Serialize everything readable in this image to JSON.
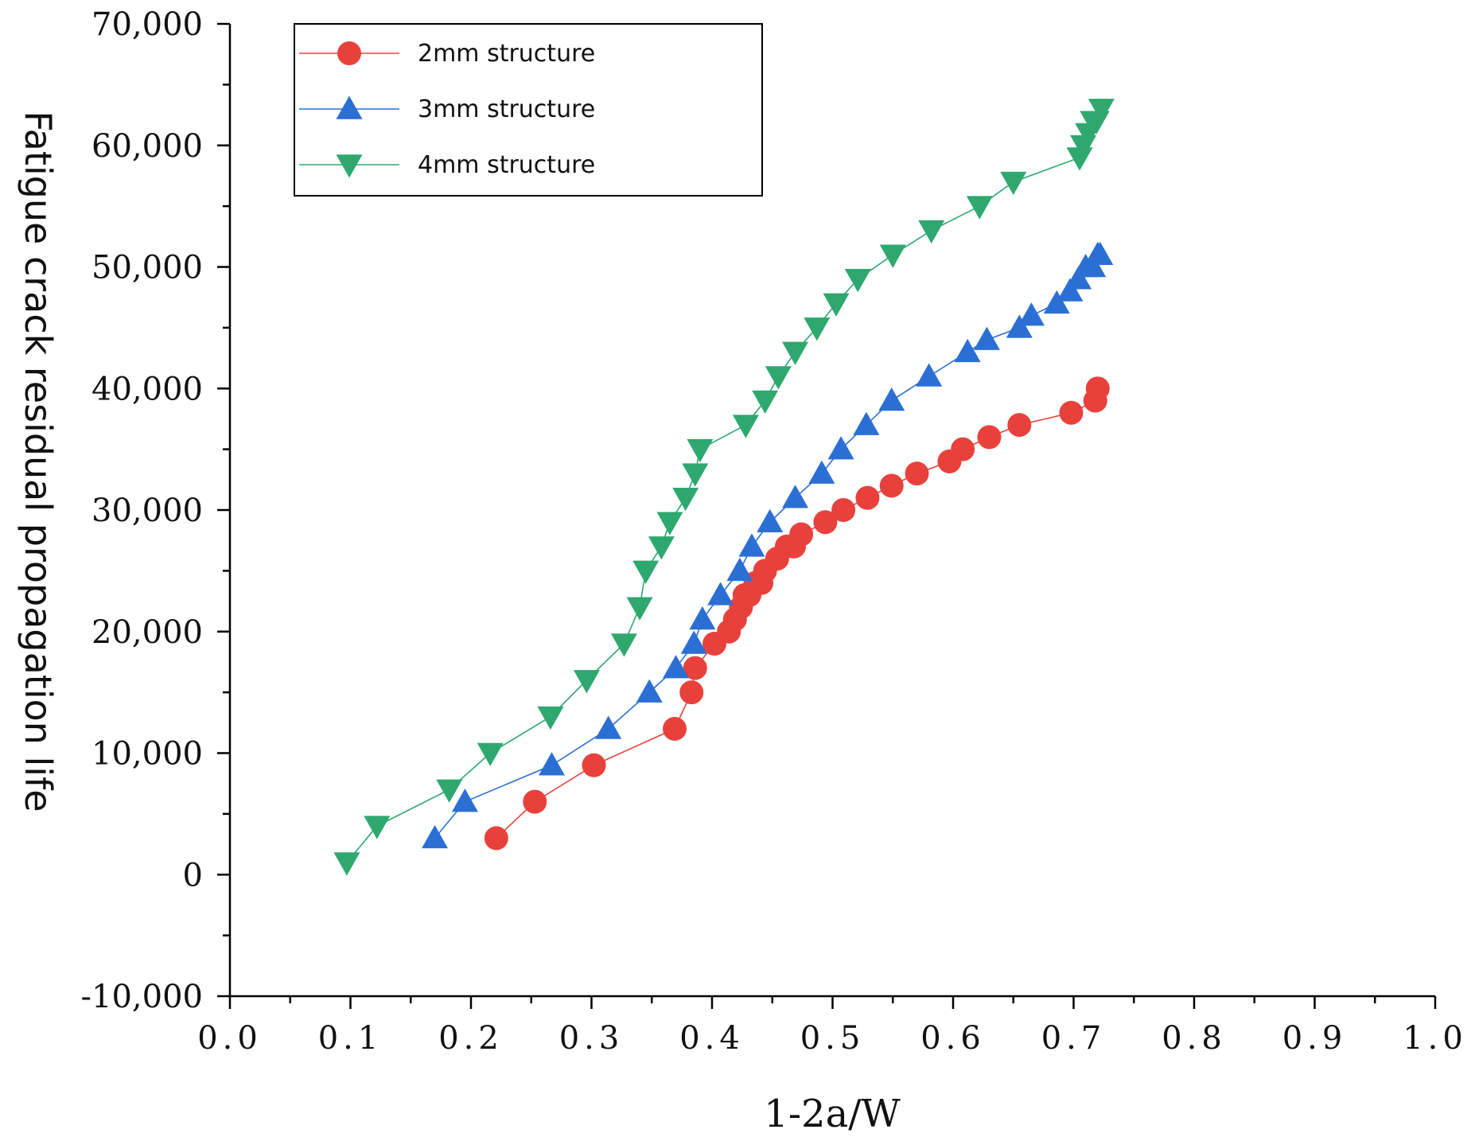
{
  "chart_data": {
    "type": "line",
    "title": "",
    "xlabel": "1-2a/W",
    "ylabel": "Fatigue crack residual propagation life",
    "xlim": [
      0.0,
      1.0
    ],
    "ylim": [
      -10000,
      70000
    ],
    "x_ticks": [
      0.0,
      0.1,
      0.2,
      0.3,
      0.4,
      0.5,
      0.6,
      0.7,
      0.8,
      0.9,
      1.0
    ],
    "x_tick_labels": [
      "0.0",
      "0.1",
      "0.2",
      "0.3",
      "0.4",
      "0.5",
      "0.6",
      "0.7",
      "0.8",
      "0.9",
      "1.0"
    ],
    "y_ticks": [
      -10000,
      0,
      10000,
      20000,
      30000,
      40000,
      50000,
      60000,
      70000
    ],
    "y_tick_labels": [
      "-10,000",
      "0",
      "10,000",
      "20,000",
      "30,000",
      "40,000",
      "50,000",
      "60,000",
      "70,000"
    ],
    "grid": false,
    "legend_position": "top-left",
    "series": [
      {
        "name": "2mm structure",
        "marker": "circle",
        "color": "#e8413c",
        "x": [
          0.221,
          0.253,
          0.302,
          0.369,
          0.383,
          0.386,
          0.402,
          0.414,
          0.419,
          0.424,
          0.427,
          0.431,
          0.436,
          0.441,
          0.444,
          0.454,
          0.462,
          0.468,
          0.474,
          0.494,
          0.509,
          0.529,
          0.549,
          0.57,
          0.597,
          0.608,
          0.63,
          0.655,
          0.698,
          0.718,
          0.72
        ],
        "y": [
          3000,
          6000,
          9000,
          12000,
          15000,
          17000,
          19000,
          20000,
          21000,
          22000,
          23000,
          23000,
          24000,
          24000,
          25000,
          26000,
          27000,
          27000,
          28000,
          29000,
          30000,
          31000,
          32000,
          33000,
          34000,
          35000,
          36000,
          37000,
          38000,
          39000,
          40000
        ]
      },
      {
        "name": "3mm structure",
        "marker": "triangle-up",
        "color": "#2b6fd4",
        "x": [
          0.17,
          0.195,
          0.267,
          0.314,
          0.348,
          0.37,
          0.385,
          0.392,
          0.407,
          0.423,
          0.433,
          0.448,
          0.469,
          0.491,
          0.507,
          0.528,
          0.549,
          0.58,
          0.612,
          0.628,
          0.655,
          0.665,
          0.686,
          0.697,
          0.704,
          0.71,
          0.716,
          0.72,
          0.722
        ],
        "y": [
          3000,
          6000,
          9000,
          12000,
          15000,
          17000,
          19000,
          21000,
          23000,
          25000,
          27000,
          29000,
          31000,
          33000,
          35000,
          37000,
          39000,
          41000,
          43000,
          44000,
          45000,
          46000,
          47000,
          48000,
          49000,
          50000,
          50000,
          51000,
          51000
        ]
      },
      {
        "name": "4mm structure",
        "marker": "triangle-down",
        "color": "#2ea86f",
        "x": [
          0.097,
          0.122,
          0.182,
          0.216,
          0.266,
          0.296,
          0.327,
          0.34,
          0.345,
          0.358,
          0.365,
          0.378,
          0.386,
          0.39,
          0.428,
          0.444,
          0.455,
          0.469,
          0.487,
          0.503,
          0.521,
          0.55,
          0.582,
          0.622,
          0.65,
          0.705,
          0.708,
          0.712,
          0.716,
          0.719,
          0.723
        ],
        "y": [
          1000,
          4000,
          7000,
          10000,
          13000,
          16000,
          19000,
          22000,
          25000,
          27000,
          29000,
          31000,
          33000,
          35000,
          37000,
          39000,
          41000,
          43000,
          45000,
          47000,
          49000,
          51000,
          53000,
          55000,
          57000,
          59000,
          60000,
          61000,
          62000,
          62000,
          63000
        ]
      }
    ]
  }
}
